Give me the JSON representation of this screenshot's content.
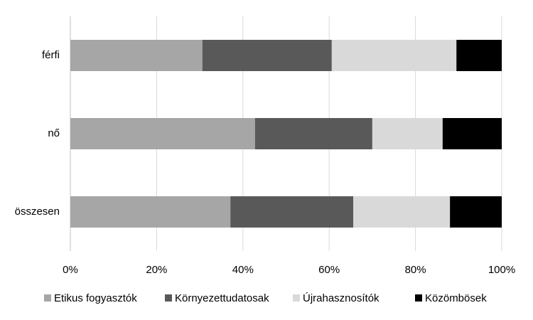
{
  "chart_data": {
    "type": "stacked-bar-horizontal",
    "categories": [
      "férfi",
      "nő",
      "összesen"
    ],
    "series": [
      {
        "name": "Etikus fogyasztók",
        "color": "#a6a6a6",
        "values": [
          30.6,
          42.8,
          37.1
        ]
      },
      {
        "name": "Környezettudatosak",
        "color": "#595959",
        "values": [
          30.0,
          27.2,
          28.5
        ]
      },
      {
        "name": "Újrahasznosítók",
        "color": "#d9d9d9",
        "values": [
          28.9,
          16.3,
          22.4
        ]
      },
      {
        "name": "Közömbösek",
        "color": "#000000",
        "values": [
          10.5,
          13.7,
          12.0
        ]
      }
    ],
    "xlim": [
      0,
      100
    ],
    "xticks": [
      {
        "value": 0,
        "label": "0%"
      },
      {
        "value": 20,
        "label": "20%"
      },
      {
        "value": 40,
        "label": "40%"
      },
      {
        "value": 60,
        "label": "60%"
      },
      {
        "value": 80,
        "label": "80%"
      },
      {
        "value": 100,
        "label": "100%"
      }
    ],
    "grid": true,
    "legend": "bottom"
  }
}
